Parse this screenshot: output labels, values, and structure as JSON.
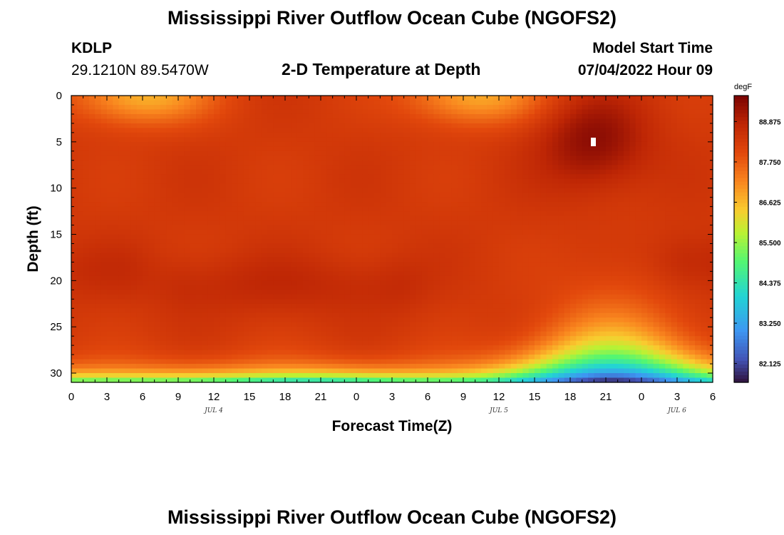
{
  "header": {
    "title": "Mississippi River Outflow Ocean Cube (NGOFS2)",
    "station": "KDLP",
    "location": "29.1210N  89.5470W",
    "subtitle": "2-D Temperature at Depth",
    "model_start_label": "Model Start Time",
    "model_start_value": "07/04/2022 Hour 09"
  },
  "footer": {
    "title": "Mississippi River Outflow Ocean Cube (NGOFS2)"
  },
  "chart_data": {
    "type": "heatmap",
    "xlabel": "Forecast Time(Z)",
    "ylabel": "Depth (ft)",
    "x_range_hours": [
      0,
      54
    ],
    "x_tick_labels": [
      "0",
      "3",
      "6",
      "9",
      "12",
      "15",
      "18",
      "21",
      "0",
      "3",
      "6",
      "9",
      "12",
      "15",
      "18",
      "21",
      "0",
      "3",
      "6"
    ],
    "date_labels": [
      {
        "text": "JUL 4",
        "at_hour": 12
      },
      {
        "text": "JUL 5",
        "at_hour": 36
      },
      {
        "text": "JUL 6",
        "at_hour": 51
      }
    ],
    "ylim": [
      0,
      31
    ],
    "y_inverted": true,
    "y_ticks": [
      "0",
      "5",
      "10",
      "15",
      "20",
      "25",
      "30"
    ],
    "colorbar": {
      "unit": "degF",
      "min": 81.6,
      "max": 89.6,
      "tick_labels": [
        "88.875",
        "87.750",
        "86.625",
        "85.500",
        "84.375",
        "83.250",
        "82.125"
      ],
      "colormap": "turbo"
    },
    "features": [
      {
        "type": "warm_core",
        "hour": 44,
        "depth_ft": 5,
        "value": 89.4
      },
      {
        "type": "warm_band",
        "hour_from": 10,
        "hour_to": 27,
        "depth_ft": 20.5,
        "value": 88.7
      },
      {
        "type": "warm_band",
        "hour_from": 0,
        "hour_to": 4,
        "depth_ft": 19,
        "value": 88.6
      },
      {
        "type": "warm_band",
        "hour_from": 52,
        "hour_to": 54,
        "depth_ft": 18,
        "value": 88.8
      },
      {
        "type": "cool_surface",
        "hour": 6,
        "depth_ft": 0,
        "value": 86.7
      },
      {
        "type": "cool_surface",
        "hour": 34,
        "depth_ft": 0,
        "value": 86.8
      },
      {
        "type": "cold_bottom",
        "hour": 45.5,
        "depth_ft": 31,
        "value": 81.6
      }
    ]
  }
}
